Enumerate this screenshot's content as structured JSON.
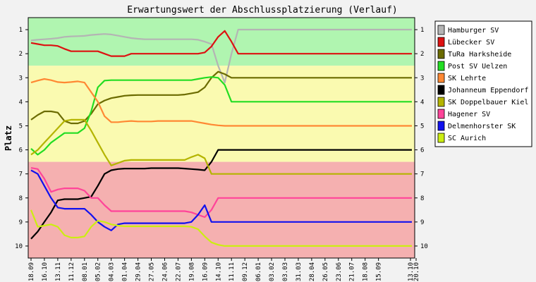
{
  "chart_data": {
    "type": "line",
    "title": "Erwartungswert der Abschlussplatzierung (Verlauf)",
    "xlabel": "",
    "ylabel": "Platz",
    "ylim": [
      0.5,
      10.5
    ],
    "y_inverted": true,
    "y_ticks": [
      1,
      2,
      3,
      4,
      5,
      6,
      7,
      8,
      9,
      10
    ],
    "y_ticks_both_sides": true,
    "grid": false,
    "legend_position": "right",
    "zones": [
      {
        "from": 0.5,
        "to": 2.5,
        "color": "#b0f5b0"
      },
      {
        "from": 2.5,
        "to": 6.5,
        "color": "#fafab0"
      },
      {
        "from": 6.5,
        "to": 10.5,
        "color": "#f5b0b0"
      }
    ],
    "x_tick_labels": [
      "18.09",
      "16.10",
      "13.11",
      "11.12",
      "08.01",
      "05.02",
      "04.03",
      "01.04",
      "29.04",
      "27.05",
      "24.06",
      "22.07",
      "19.08",
      "16.09",
      "14.10",
      "11.11",
      "09.12",
      "06.01",
      "03.02",
      "03.03",
      "31.03",
      "28.04",
      "26.05",
      "23.06",
      "21.07",
      "18.08",
      "15.09",
      "13.10",
      "20.10"
    ],
    "x": [
      0,
      1,
      2,
      3,
      4,
      5,
      6,
      7,
      8,
      9,
      10,
      11,
      12,
      13,
      14,
      15,
      16,
      17,
      18,
      19,
      20,
      21,
      22,
      23,
      24,
      25,
      26,
      27,
      28,
      29,
      30,
      31,
      32,
      33,
      34,
      35,
      36,
      37,
      38,
      39,
      40,
      41,
      42,
      43,
      44,
      45,
      46,
      47,
      48,
      49,
      50,
      51,
      52,
      53,
      54,
      55,
      56,
      57
    ],
    "series": [
      {
        "name": "Hamburger SV",
        "color": "#b4b4b4",
        "values": [
          1.45,
          1.42,
          1.4,
          1.38,
          1.35,
          1.3,
          1.28,
          1.27,
          1.26,
          1.22,
          1.2,
          1.18,
          1.2,
          1.25,
          1.3,
          1.35,
          1.38,
          1.4,
          1.4,
          1.4,
          1.4,
          1.4,
          1.4,
          1.4,
          1.4,
          1.42,
          1.5,
          1.6,
          2.5,
          3.2,
          2.0,
          1.0,
          1.0,
          1.0,
          1.0,
          1.0,
          1.0,
          1.0,
          1.0,
          1.0,
          1.0,
          1.0,
          1.0,
          1.0,
          1.0,
          1.0,
          1.0,
          1.0,
          1.0,
          1.0,
          1.0,
          1.0,
          1.0,
          1.0,
          1.0,
          1.0,
          1.0,
          1.0
        ]
      },
      {
        "name": "Lübecker SV",
        "color": "#dd1111",
        "values": [
          1.55,
          1.6,
          1.65,
          1.65,
          1.68,
          1.8,
          1.9,
          1.9,
          1.9,
          1.9,
          1.9,
          2.0,
          2.1,
          2.1,
          2.1,
          2.0,
          2.0,
          2.0,
          2.0,
          2.0,
          2.0,
          2.0,
          2.0,
          2.0,
          2.0,
          2.0,
          1.95,
          1.7,
          1.3,
          1.05,
          1.5,
          2.0,
          2.0,
          2.0,
          2.0,
          2.0,
          2.0,
          2.0,
          2.0,
          2.0,
          2.0,
          2.0,
          2.0,
          2.0,
          2.0,
          2.0,
          2.0,
          2.0,
          2.0,
          2.0,
          2.0,
          2.0,
          2.0,
          2.0,
          2.0,
          2.0,
          2.0,
          2.0
        ]
      },
      {
        "name": "TuRa Harksheide",
        "color": "#6b6b00",
        "values": [
          4.75,
          4.55,
          4.4,
          4.4,
          4.45,
          4.8,
          4.9,
          4.9,
          4.8,
          4.5,
          4.1,
          3.95,
          3.85,
          3.8,
          3.75,
          3.73,
          3.72,
          3.72,
          3.72,
          3.72,
          3.72,
          3.72,
          3.72,
          3.7,
          3.65,
          3.6,
          3.4,
          3.0,
          2.75,
          2.85,
          3.0,
          3.0,
          3.0,
          3.0,
          3.0,
          3.0,
          3.0,
          3.0,
          3.0,
          3.0,
          3.0,
          3.0,
          3.0,
          3.0,
          3.0,
          3.0,
          3.0,
          3.0,
          3.0,
          3.0,
          3.0,
          3.0,
          3.0,
          3.0,
          3.0,
          3.0,
          3.0,
          3.0
        ]
      },
      {
        "name": "Post SV Uelzen",
        "color": "#22dd22",
        "values": [
          5.95,
          6.2,
          6.0,
          5.7,
          5.5,
          5.3,
          5.3,
          5.3,
          5.1,
          4.4,
          3.4,
          3.12,
          3.1,
          3.1,
          3.1,
          3.1,
          3.1,
          3.1,
          3.1,
          3.1,
          3.1,
          3.1,
          3.1,
          3.1,
          3.1,
          3.05,
          3.0,
          2.97,
          3.0,
          3.3,
          4.0,
          4.0,
          4.0,
          4.0,
          4.0,
          4.0,
          4.0,
          4.0,
          4.0,
          4.0,
          4.0,
          4.0,
          4.0,
          4.0,
          4.0,
          4.0,
          4.0,
          4.0,
          4.0,
          4.0,
          4.0,
          4.0,
          4.0,
          4.0,
          4.0,
          4.0,
          4.0,
          4.0
        ]
      },
      {
        "name": "SK Lehrte",
        "color": "#ff8833",
        "values": [
          3.2,
          3.12,
          3.05,
          3.1,
          3.18,
          3.2,
          3.18,
          3.15,
          3.2,
          3.6,
          4.0,
          4.6,
          4.85,
          4.85,
          4.82,
          4.8,
          4.82,
          4.82,
          4.82,
          4.8,
          4.8,
          4.8,
          4.8,
          4.8,
          4.8,
          4.85,
          4.9,
          4.95,
          4.98,
          5.0,
          5.0,
          5.0,
          5.0,
          5.0,
          5.0,
          5.0,
          5.0,
          5.0,
          5.0,
          5.0,
          5.0,
          5.0,
          5.0,
          5.0,
          5.0,
          5.0,
          5.0,
          5.0,
          5.0,
          5.0,
          5.0,
          5.0,
          5.0,
          5.0,
          5.0,
          5.0,
          5.0,
          5.0
        ]
      },
      {
        "name": "Johanneum Eppendorf",
        "color": "#000000",
        "values": [
          9.7,
          9.4,
          9.0,
          8.6,
          8.1,
          8.05,
          8.05,
          8.05,
          8.0,
          7.95,
          7.5,
          7.0,
          6.85,
          6.8,
          6.78,
          6.78,
          6.78,
          6.78,
          6.76,
          6.76,
          6.76,
          6.76,
          6.76,
          6.78,
          6.8,
          6.82,
          6.85,
          6.5,
          6.0,
          6.0,
          6.0,
          6.0,
          6.0,
          6.0,
          6.0,
          6.0,
          6.0,
          6.0,
          6.0,
          6.0,
          6.0,
          6.0,
          6.0,
          6.0,
          6.0,
          6.0,
          6.0,
          6.0,
          6.0,
          6.0,
          6.0,
          6.0,
          6.0,
          6.0,
          6.0,
          6.0,
          6.0,
          6.0
        ]
      },
      {
        "name": "SK Doppelbauer Kiel",
        "color": "#b4b400",
        "values": [
          6.2,
          6.0,
          5.7,
          5.4,
          5.1,
          4.8,
          4.75,
          4.75,
          4.75,
          5.2,
          5.7,
          6.2,
          6.65,
          6.55,
          6.45,
          6.42,
          6.42,
          6.42,
          6.42,
          6.42,
          6.42,
          6.42,
          6.42,
          6.42,
          6.3,
          6.2,
          6.35,
          7.0,
          7.0,
          7.0,
          7.0,
          7.0,
          7.0,
          7.0,
          7.0,
          7.0,
          7.0,
          7.0,
          7.0,
          7.0,
          7.0,
          7.0,
          7.0,
          7.0,
          7.0,
          7.0,
          7.0,
          7.0,
          7.0,
          7.0,
          7.0,
          7.0,
          7.0,
          7.0,
          7.0,
          7.0,
          7.0,
          7.0
        ]
      },
      {
        "name": "Hagener SV",
        "color": "#ff4499",
        "values": [
          6.75,
          6.8,
          7.2,
          7.75,
          7.65,
          7.6,
          7.6,
          7.6,
          7.7,
          8.0,
          8.0,
          8.3,
          8.55,
          8.55,
          8.55,
          8.55,
          8.55,
          8.55,
          8.55,
          8.55,
          8.55,
          8.55,
          8.55,
          8.55,
          8.6,
          8.7,
          8.8,
          8.5,
          8.0,
          8.0,
          8.0,
          8.0,
          8.0,
          8.0,
          8.0,
          8.0,
          8.0,
          8.0,
          8.0,
          8.0,
          8.0,
          8.0,
          8.0,
          8.0,
          8.0,
          8.0,
          8.0,
          8.0,
          8.0,
          8.0,
          8.0,
          8.0,
          8.0,
          8.0,
          8.0,
          8.0,
          8.0,
          8.0
        ]
      },
      {
        "name": "Delmenhorster SK",
        "color": "#1111ee",
        "values": [
          6.85,
          7.0,
          7.5,
          8.0,
          8.4,
          8.45,
          8.45,
          8.45,
          8.45,
          8.7,
          9.0,
          9.2,
          9.35,
          9.1,
          9.05,
          9.05,
          9.05,
          9.05,
          9.05,
          9.05,
          9.05,
          9.05,
          9.05,
          9.05,
          9.0,
          8.7,
          8.3,
          9.0,
          9.0,
          9.0,
          9.0,
          9.0,
          9.0,
          9.0,
          9.0,
          9.0,
          9.0,
          9.0,
          9.0,
          9.0,
          9.0,
          9.0,
          9.0,
          9.0,
          9.0,
          9.0,
          9.0,
          9.0,
          9.0,
          9.0,
          9.0,
          9.0,
          9.0,
          9.0,
          9.0,
          9.0,
          9.0,
          9.0
        ]
      },
      {
        "name": "SC Aurich",
        "color": "#ccee11",
        "values": [
          8.5,
          9.2,
          9.15,
          9.1,
          9.2,
          9.55,
          9.65,
          9.65,
          9.6,
          9.2,
          8.95,
          9.0,
          9.1,
          9.15,
          9.18,
          9.18,
          9.18,
          9.18,
          9.18,
          9.18,
          9.18,
          9.18,
          9.18,
          9.18,
          9.2,
          9.3,
          9.6,
          9.85,
          9.95,
          10.0,
          10.0,
          10.0,
          10.0,
          10.0,
          10.0,
          10.0,
          10.0,
          10.0,
          10.0,
          10.0,
          10.0,
          10.0,
          10.0,
          10.0,
          10.0,
          10.0,
          10.0,
          10.0,
          10.0,
          10.0,
          10.0,
          10.0,
          10.0,
          10.0,
          10.0,
          10.0,
          10.0,
          10.0
        ]
      }
    ]
  }
}
